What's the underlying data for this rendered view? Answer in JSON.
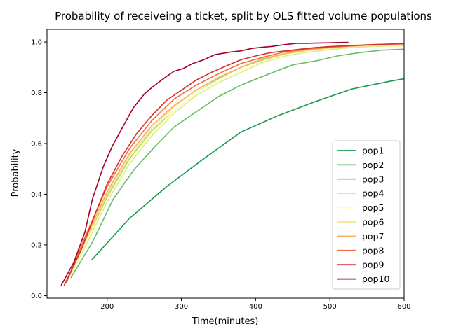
{
  "chart_data": {
    "type": "line",
    "title": "Probability of receiveing a ticket, split by OLS fitted volume populations",
    "xlabel": "Time(minutes)",
    "ylabel": "Probability",
    "xlim": [
      119,
      600
    ],
    "ylim": [
      -0.01,
      1.05
    ],
    "xticks": [
      200,
      300,
      400,
      500,
      600
    ],
    "yticks": [
      0.0,
      0.2,
      0.4,
      0.6,
      0.8,
      1.0
    ],
    "xtick_labels": [
      "200",
      "300",
      "400",
      "500",
      "600"
    ],
    "ytick_labels": [
      "0.0",
      "0.2",
      "0.4",
      "0.6",
      "0.8",
      "1.0"
    ],
    "grid": false,
    "legend_position": "lower right",
    "series": [
      {
        "name": "pop1",
        "color": "#1a9850",
        "x": [
          179,
          230,
          280,
          330,
          380,
          430,
          480,
          530,
          580,
          600
        ],
        "y": [
          0.14,
          0.305,
          0.43,
          0.54,
          0.645,
          0.71,
          0.765,
          0.815,
          0.845,
          0.855
        ]
      },
      {
        "name": "pop2",
        "color": "#66bd63",
        "x": [
          151,
          180,
          208,
          237,
          265,
          290,
          320,
          350,
          380,
          410,
          450,
          480,
          510,
          540,
          570,
          600
        ],
        "y": [
          0.07,
          0.21,
          0.38,
          0.5,
          0.59,
          0.665,
          0.725,
          0.785,
          0.83,
          0.865,
          0.91,
          0.925,
          0.945,
          0.958,
          0.968,
          0.972
        ]
      },
      {
        "name": "pop3",
        "color": "#a6d96a",
        "x": [
          145,
          170,
          200,
          230,
          260,
          290,
          320,
          350,
          380,
          410,
          440,
          470,
          500,
          530,
          560,
          600
        ],
        "y": [
          0.05,
          0.2,
          0.39,
          0.54,
          0.65,
          0.73,
          0.8,
          0.855,
          0.9,
          0.935,
          0.955,
          0.97,
          0.975,
          0.98,
          0.985,
          0.988
        ]
      },
      {
        "name": "pop4",
        "color": "#d9ef8b",
        "x": [
          145,
          170,
          200,
          230,
          260,
          290,
          320,
          350,
          380,
          410,
          440,
          470,
          500,
          530,
          560,
          600
        ],
        "y": [
          0.05,
          0.19,
          0.37,
          0.52,
          0.63,
          0.72,
          0.79,
          0.84,
          0.88,
          0.92,
          0.945,
          0.96,
          0.97,
          0.978,
          0.983,
          0.985
        ]
      },
      {
        "name": "pop5",
        "color": "#ffffbf",
        "x": [
          145,
          170,
          200,
          230,
          260,
          290,
          320,
          350,
          380,
          410,
          440,
          470,
          500,
          530,
          560,
          600
        ],
        "y": [
          0.05,
          0.2,
          0.38,
          0.53,
          0.64,
          0.73,
          0.8,
          0.85,
          0.89,
          0.925,
          0.95,
          0.965,
          0.975,
          0.982,
          0.986,
          0.988
        ]
      },
      {
        "name": "pop6",
        "color": "#fee08b",
        "x": [
          145,
          170,
          200,
          230,
          260,
          290,
          320,
          350,
          380,
          410,
          440,
          470,
          500,
          530,
          560,
          600
        ],
        "y": [
          0.05,
          0.21,
          0.4,
          0.55,
          0.66,
          0.745,
          0.81,
          0.86,
          0.9,
          0.93,
          0.953,
          0.967,
          0.976,
          0.982,
          0.986,
          0.99
        ]
      },
      {
        "name": "pop7",
        "color": "#fdae61",
        "x": [
          145,
          170,
          200,
          230,
          260,
          290,
          320,
          350,
          380,
          410,
          440,
          470,
          500,
          530,
          560,
          600
        ],
        "y": [
          0.05,
          0.22,
          0.41,
          0.56,
          0.67,
          0.75,
          0.81,
          0.86,
          0.9,
          0.93,
          0.955,
          0.97,
          0.978,
          0.984,
          0.988,
          0.99
        ]
      },
      {
        "name": "pop8",
        "color": "#f46d43",
        "x": [
          145,
          170,
          200,
          230,
          260,
          290,
          320,
          350,
          380,
          410,
          440,
          470,
          500,
          530,
          560,
          600
        ],
        "y": [
          0.05,
          0.23,
          0.43,
          0.58,
          0.69,
          0.775,
          0.83,
          0.875,
          0.915,
          0.94,
          0.962,
          0.972,
          0.98,
          0.985,
          0.99,
          0.993
        ]
      },
      {
        "name": "pop9",
        "color": "#d73027",
        "x": [
          142,
          165,
          185,
          200,
          220,
          240,
          260,
          280,
          300,
          320,
          340,
          360,
          380,
          400,
          420,
          440,
          460,
          480,
          500,
          520,
          540,
          560,
          580,
          600
        ],
        "y": [
          0.04,
          0.18,
          0.33,
          0.44,
          0.55,
          0.64,
          0.71,
          0.77,
          0.81,
          0.85,
          0.88,
          0.905,
          0.93,
          0.945,
          0.958,
          0.965,
          0.972,
          0.978,
          0.982,
          0.985,
          0.988,
          0.99,
          0.992,
          0.995
        ]
      },
      {
        "name": "pop10",
        "color": "#a50026",
        "x": [
          138,
          155,
          170,
          180,
          195,
          207,
          220,
          235,
          250,
          262,
          278,
          290,
          302,
          315,
          330,
          345,
          365,
          380,
          395,
          410,
          420,
          440,
          455,
          470,
          480,
          500,
          510,
          525
        ],
        "y": [
          0.04,
          0.13,
          0.25,
          0.38,
          0.51,
          0.59,
          0.66,
          0.74,
          0.795,
          0.825,
          0.86,
          0.885,
          0.895,
          0.915,
          0.93,
          0.95,
          0.96,
          0.965,
          0.975,
          0.98,
          0.982,
          0.99,
          0.995,
          0.995,
          0.996,
          0.997,
          0.998,
          0.999
        ]
      }
    ]
  }
}
